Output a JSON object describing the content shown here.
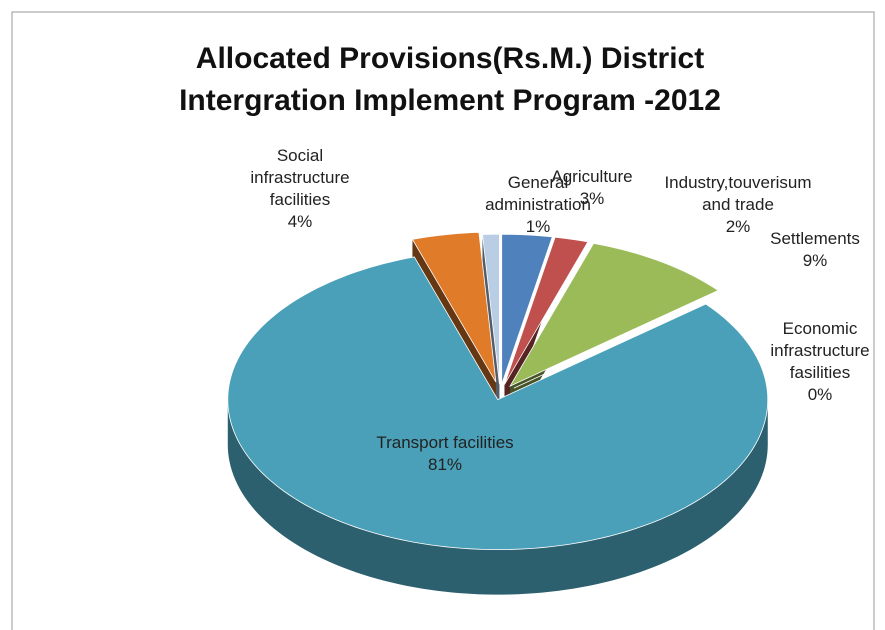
{
  "chart_data": {
    "type": "pie",
    "title": "Allocated Provisions(Rs.M.) District Intergration Implement Program -2012",
    "categories": [
      "General administration",
      "Agriculture",
      "Industry,touverisum and trade",
      "Settlements",
      "Economic infrastructure fasilities",
      "Transport facilities",
      "Social infrastructure facilities"
    ],
    "values": [
      1,
      3,
      2,
      9,
      0,
      81,
      4
    ],
    "value_labels": [
      "1%",
      "3%",
      "2%",
      "9%",
      "0%",
      "81%",
      "4%"
    ],
    "colors": [
      "#b9cde5",
      "#4f81bd",
      "#c0504d",
      "#9bbb59",
      "#8064a2",
      "#4aa0b8",
      "#e07b2a"
    ]
  }
}
